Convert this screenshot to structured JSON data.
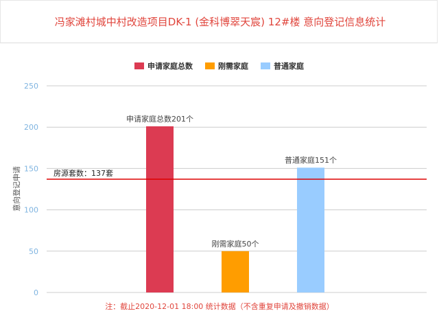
{
  "title": "冯家滩村城中村改造项目DK-1 (金科博翠天宸)  12#楼 意向登记信息统计",
  "footnote": "注：截止2020-12-01 18:00 统计数据（不含重复申请及撤销数据）",
  "colors": {
    "title": "#e0453c",
    "footnote": "#e0453c",
    "axis_tick": "#7fb4e0",
    "grid": "#cccccc",
    "reference_line": "#dd0000"
  },
  "chart_data": {
    "type": "bar",
    "title": "冯家滩村城中村改造项目DK-1 (金科博翠天宸)  12#楼 意向登记信息统计",
    "ylabel": "意向登记申请",
    "xlabel": "",
    "ylim": [
      0,
      250
    ],
    "yticks": [
      0,
      50,
      100,
      150,
      200,
      250
    ],
    "grid": true,
    "legend_position": "top-center",
    "series": [
      {
        "name": "申请家庭总数",
        "value": 201,
        "label": "申请家庭总数201个",
        "color": "#dc3b52"
      },
      {
        "name": "刚需家庭",
        "value": 50,
        "label": "刚需家庭50个",
        "color": "#ff9d00"
      },
      {
        "name": "普通家庭",
        "value": 151,
        "label": "普通家庭151个",
        "color": "#99ccff"
      }
    ],
    "reference_line": {
      "value": 137,
      "label": "房源套数：137套"
    }
  }
}
